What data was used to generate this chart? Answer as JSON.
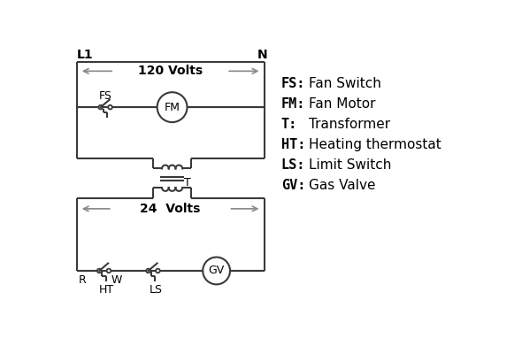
{
  "bg_color": "#ffffff",
  "line_color": "#3a3a3a",
  "arrow_color": "#888888",
  "text_color": "#000000",
  "legend_items": [
    [
      "FS:",
      "Fan Switch"
    ],
    [
      "FM:",
      "Fan Motor"
    ],
    [
      "T:",
      "Transformer"
    ],
    [
      "HT:",
      "Heating thermostat"
    ],
    [
      "LS:",
      "Limit Switch"
    ],
    [
      "GV:",
      "Gas Valve"
    ]
  ],
  "volts120_label": "120 Volts",
  "volts24_label": "24  Volts",
  "L1_label": "L1",
  "N_label": "N",
  "FS_label": "FS",
  "FM_label": "FM",
  "T_label": "T",
  "R_label": "R",
  "W_label": "W",
  "HT_label": "HT",
  "LS_label": "LS",
  "GV_label": "GV"
}
